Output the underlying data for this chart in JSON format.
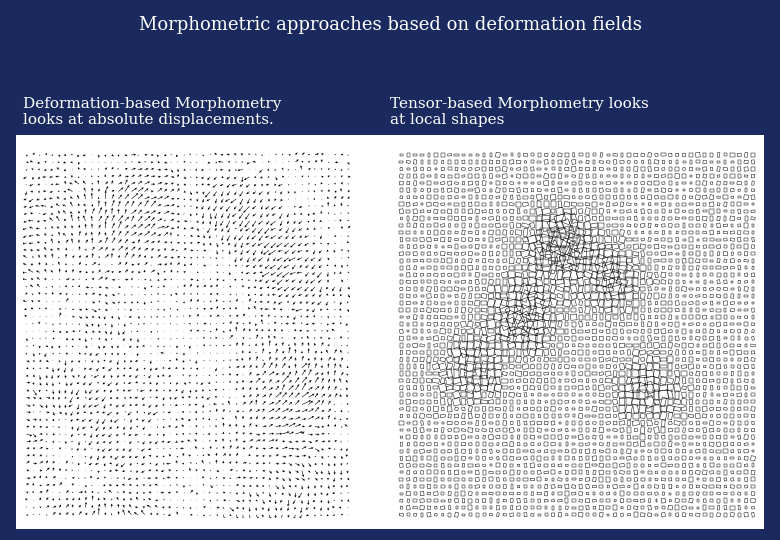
{
  "title": "Morphometric approaches based on deformation fields",
  "title_fontsize": 13,
  "title_color": "white",
  "bg_color": "#1a2a5e",
  "left_text_line1": "Deformation-based Morphometry",
  "left_text_line2": "looks at absolute displacements.",
  "right_text_line1": "Tensor-based Morphometry looks",
  "right_text_line2": "at local shapes",
  "text_color": "white",
  "text_fontsize": 11,
  "panel_bg": "white"
}
